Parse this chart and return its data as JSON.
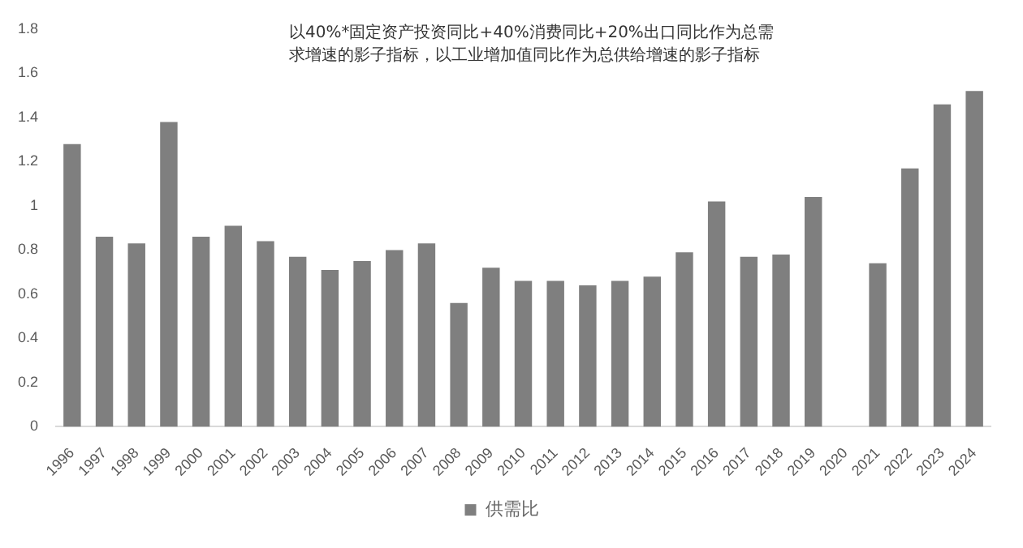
{
  "chart_data": {
    "type": "bar",
    "annotations": [
      "以40%*固定资产投资同比+40%消费同比+20%出口同比作为总需求增速的影子指标，以工业增加值同比作为总供给增速的影子指标"
    ],
    "categories": [
      "1996",
      "1997",
      "1998",
      "1999",
      "2000",
      "2001",
      "2002",
      "2003",
      "2004",
      "2005",
      "2006",
      "2007",
      "2008",
      "2009",
      "2010",
      "2011",
      "2012",
      "2013",
      "2014",
      "2015",
      "2016",
      "2017",
      "2018",
      "2019",
      "2020",
      "2021",
      "2022",
      "2023",
      "2024"
    ],
    "series": [
      {
        "name": "供需比",
        "color": "#7f7f7f",
        "values": [
          1.28,
          0.86,
          0.83,
          1.38,
          0.86,
          0.91,
          0.84,
          0.77,
          0.71,
          0.75,
          0.8,
          0.83,
          0.56,
          0.72,
          0.66,
          0.66,
          0.64,
          0.66,
          0.68,
          0.79,
          1.02,
          0.77,
          0.78,
          1.04,
          null,
          0.74,
          1.17,
          1.46,
          1.52
        ]
      }
    ],
    "ylim": [
      0,
      1.8
    ],
    "yticks": [
      0,
      0.2,
      0.4,
      0.6,
      0.8,
      1,
      1.2,
      1.4,
      1.6,
      1.8
    ],
    "grid": false,
    "legend": "bottom"
  }
}
